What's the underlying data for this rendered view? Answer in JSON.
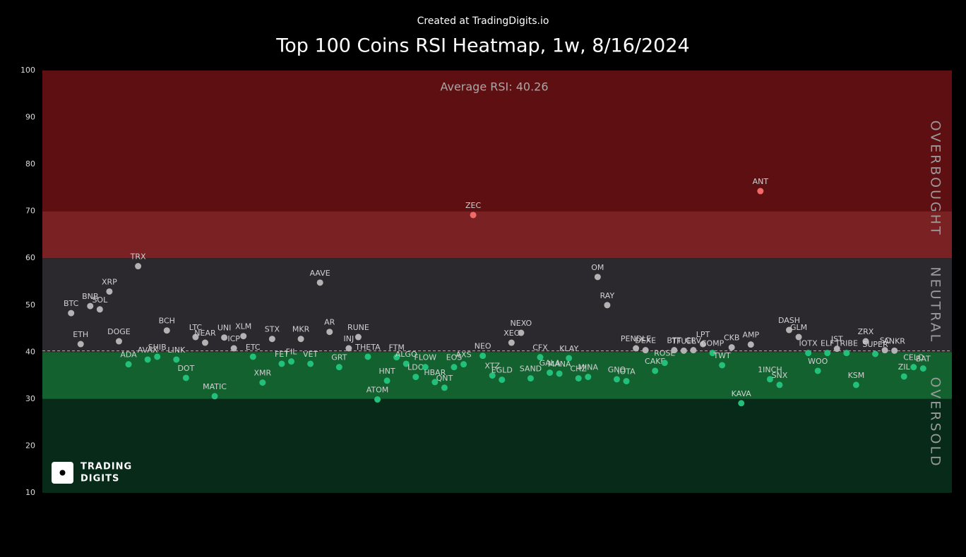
{
  "chart_data": {
    "type": "scatter",
    "credit": "Created at TradingDigits.io",
    "title": "Top 100 Coins RSI Heatmap, 1w, 8/16/2024",
    "average": 40.26,
    "average_label": "Average RSI: 40.26",
    "watermark": [
      "TRADING",
      "DIGITS"
    ],
    "ylim": [
      10,
      100
    ],
    "yticks": [
      10,
      20,
      30,
      40,
      50,
      60,
      70,
      80,
      90,
      100
    ],
    "bands": [
      {
        "range": [
          70,
          100
        ],
        "color": "#5e0f12"
      },
      {
        "range": [
          60,
          70
        ],
        "color": "#7a2124"
      },
      {
        "range": [
          40,
          60
        ],
        "color": "#2b292e"
      },
      {
        "range": [
          30,
          40
        ],
        "color": "#13612f"
      },
      {
        "range": [
          10,
          30
        ],
        "color": "#072a19"
      }
    ],
    "zones": [
      {
        "name": "OVERBOUGHT",
        "range": [
          60,
          100
        ],
        "color": "#f06a6a"
      },
      {
        "name": "NEUTRAL",
        "range": [
          40,
          60
        ],
        "color": "#b3b3b3"
      },
      {
        "name": "OVERSOLD",
        "range": [
          10,
          40
        ],
        "color": "#22c07a"
      }
    ],
    "categories": [
      "BTC",
      "ETH",
      "BNB",
      "SOL",
      "XRP",
      "DOGE",
      "ADA",
      "TRX",
      "AVAX",
      "SHIB",
      "BCH",
      "LINK",
      "DOT",
      "LTC",
      "NEAR",
      "MATIC",
      "UNI",
      "ICP",
      "XLM",
      "ETC",
      "XMR",
      "STX",
      "FET",
      "FIL",
      "MKR",
      "VET",
      "AAVE",
      "AR",
      "GRT",
      "INJ",
      "RUNE",
      "THETA",
      "ATOM",
      "HNT",
      "FTM",
      "ALGO",
      "LDO",
      "FLOW",
      "HBAR",
      "QNT",
      "EOS",
      "AXS",
      "ZEC",
      "NEO",
      "XTZ",
      "EGLD",
      "XEC",
      "NEXO",
      "SAND",
      "CFX",
      "GALA",
      "MANA",
      "KLAY",
      "CHZ",
      "MINA",
      "OM",
      "RAY",
      "GNO",
      "IOTA",
      "PENDLE",
      "DEXE",
      "CAKE",
      "ROSE",
      "BTT",
      "TFUEL",
      "CRV",
      "LPT",
      "COMP",
      "TWT",
      "CKB",
      "KAVA",
      "AMP",
      "ANT",
      "1INCH",
      "SNX",
      "DASH",
      "GLM",
      "IOTX",
      "WOO",
      "ELF",
      "JST",
      "TRIBE",
      "KSM",
      "ZRX",
      "SUPER",
      "SC",
      "ANKR",
      "ZIL",
      "CELO",
      "BAT"
    ],
    "values": [
      48.3,
      41.7,
      49.8,
      49.1,
      52.9,
      42.3,
      37.4,
      58.3,
      38.4,
      39.0,
      44.6,
      38.4,
      34.5,
      43.2,
      42.0,
      30.6,
      43.1,
      40.8,
      43.4,
      39.0,
      33.5,
      42.8,
      37.5,
      38.0,
      42.8,
      37.5,
      54.8,
      44.3,
      36.8,
      40.8,
      43.2,
      39.0,
      29.9,
      33.9,
      38.9,
      37.5,
      34.7,
      36.8,
      33.6,
      32.4,
      36.8,
      37.4,
      69.2,
      39.2,
      35.0,
      34.1,
      42.0,
      44.1,
      34.4,
      38.9,
      35.6,
      35.4,
      38.7,
      34.4,
      34.7,
      56.0,
      50.0,
      34.2,
      33.8,
      40.8,
      40.4,
      36.0,
      37.7,
      40.4,
      40.3,
      40.4,
      41.7,
      39.8,
      37.2,
      41.0,
      29.1,
      41.6,
      74.3,
      34.2,
      33.0,
      44.7,
      43.2,
      39.8,
      36.0,
      39.8,
      40.7,
      39.8,
      33.0,
      42.3,
      39.6,
      40.4,
      40.3,
      34.8,
      36.8,
      36.5
    ]
  }
}
